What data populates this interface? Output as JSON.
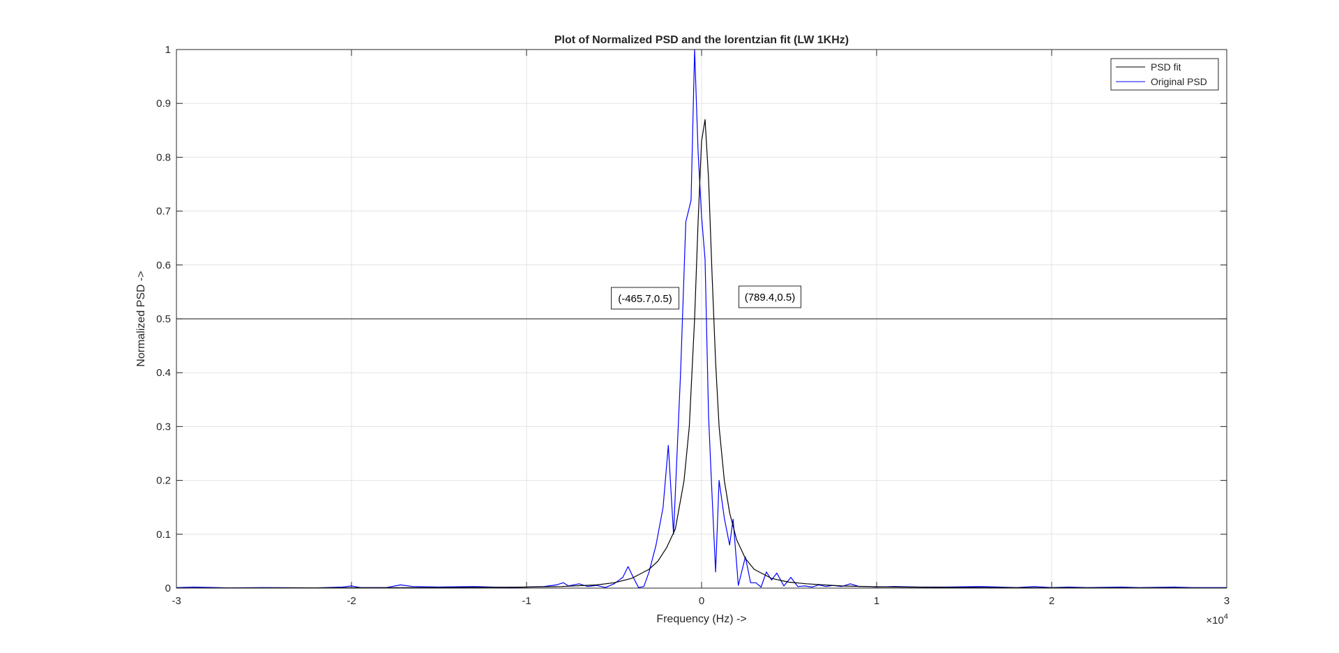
{
  "chart_data": {
    "type": "line",
    "title": "Plot of Normalized PSD and the lorentzian fit (LW 1KHz)",
    "xlabel": "Frequency (Hz) ->",
    "ylabel": "Normalized PSD ->",
    "x_exponent_label": "×10",
    "x_exponent_power": "4",
    "xlim": [
      -30000,
      30000
    ],
    "ylim": [
      0,
      1
    ],
    "xticks": [
      -30000,
      -20000,
      -10000,
      0,
      10000,
      20000,
      30000
    ],
    "xtick_labels": [
      "-3",
      "-2",
      "-1",
      "0",
      "1",
      "2",
      "3"
    ],
    "yticks": [
      0,
      0.1,
      0.2,
      0.3,
      0.4,
      0.5,
      0.6,
      0.7,
      0.8,
      0.9,
      1
    ],
    "ytick_labels": [
      "0",
      "0.1",
      "0.2",
      "0.3",
      "0.4",
      "0.5",
      "0.6",
      "0.7",
      "0.8",
      "0.9",
      "1"
    ],
    "grid": true,
    "legend_position": "top-right",
    "series": [
      {
        "name": "PSD fit",
        "color": "#000000",
        "x": [
          -30000,
          -25000,
          -20000,
          -15000,
          -12000,
          -10000,
          -8000,
          -6000,
          -5000,
          -4000,
          -3000,
          -2500,
          -2000,
          -1500,
          -1000,
          -700,
          -400,
          -200,
          0,
          200,
          400,
          600,
          800,
          1000,
          1300,
          1600,
          2000,
          2500,
          3000,
          4000,
          5000,
          6000,
          8000,
          10000,
          12000,
          15000,
          20000,
          25000,
          30000
        ],
        "values": [
          0.0003,
          0.0004,
          0.0006,
          0.001,
          0.0015,
          0.002,
          0.003,
          0.006,
          0.01,
          0.018,
          0.035,
          0.05,
          0.075,
          0.11,
          0.2,
          0.3,
          0.5,
          0.68,
          0.83,
          0.87,
          0.76,
          0.58,
          0.42,
          0.3,
          0.2,
          0.14,
          0.09,
          0.055,
          0.035,
          0.018,
          0.011,
          0.008,
          0.004,
          0.0025,
          0.0018,
          0.0012,
          0.0007,
          0.0005,
          0.0003
        ]
      },
      {
        "name": "Original PSD",
        "color": "#0000ff",
        "x": [
          -30000,
          -29000,
          -27000,
          -25000,
          -22000,
          -20500,
          -20000,
          -19500,
          -18000,
          -17200,
          -16500,
          -15000,
          -13000,
          -12000,
          -11000,
          -10000,
          -9000,
          -8300,
          -7900,
          -7600,
          -7000,
          -6500,
          -6000,
          -5500,
          -5000,
          -4500,
          -4200,
          -3900,
          -3600,
          -3300,
          -3000,
          -2600,
          -2200,
          -1900,
          -1600,
          -1200,
          -900,
          -600,
          -400,
          -200,
          0,
          200,
          400,
          600,
          800,
          1000,
          1300,
          1600,
          1800,
          2100,
          2500,
          2800,
          3100,
          3400,
          3700,
          4000,
          4300,
          4700,
          5100,
          5500,
          5900,
          6300,
          6700,
          7100,
          7500,
          8000,
          8500,
          9000,
          9500,
          10000,
          11000,
          12500,
          14000,
          16000,
          18000,
          19000,
          20000,
          21000,
          22000,
          24000,
          25000,
          27000,
          28000,
          30000
        ],
        "values": [
          0.001,
          0.002,
          0.0005,
          0.001,
          0.0005,
          0.002,
          0.004,
          0.001,
          0.001,
          0.006,
          0.003,
          0.002,
          0.003,
          0.002,
          0.001,
          0.002,
          0.003,
          0.006,
          0.01,
          0.004,
          0.008,
          0.003,
          0.005,
          0.001,
          0.008,
          0.02,
          0.04,
          0.02,
          0.001,
          0.003,
          0.03,
          0.08,
          0.15,
          0.265,
          0.1,
          0.4,
          0.68,
          0.72,
          1.0,
          0.81,
          0.69,
          0.61,
          0.32,
          0.17,
          0.03,
          0.2,
          0.13,
          0.08,
          0.128,
          0.005,
          0.058,
          0.01,
          0.01,
          0.002,
          0.03,
          0.015,
          0.028,
          0.004,
          0.02,
          0.003,
          0.004,
          0.002,
          0.006,
          0.003,
          0.005,
          0.003,
          0.008,
          0.003,
          0.003,
          0.002,
          0.003,
          0.002,
          0.002,
          0.003,
          0.001,
          0.003,
          0.001,
          0.002,
          0.001,
          0.002,
          0.001,
          0.002,
          0.001,
          0.001
        ]
      },
      {
        "color": "#404040",
        "x": [
          -30000,
          30000
        ],
        "values": [
          0.5,
          0.5
        ]
      }
    ],
    "annotations": [
      {
        "text": "(-465.7,0.5)",
        "x": -465.7,
        "y": 0.5
      },
      {
        "text": "(789.4,0.5)",
        "x": 789.4,
        "y": 0.5
      }
    ]
  }
}
